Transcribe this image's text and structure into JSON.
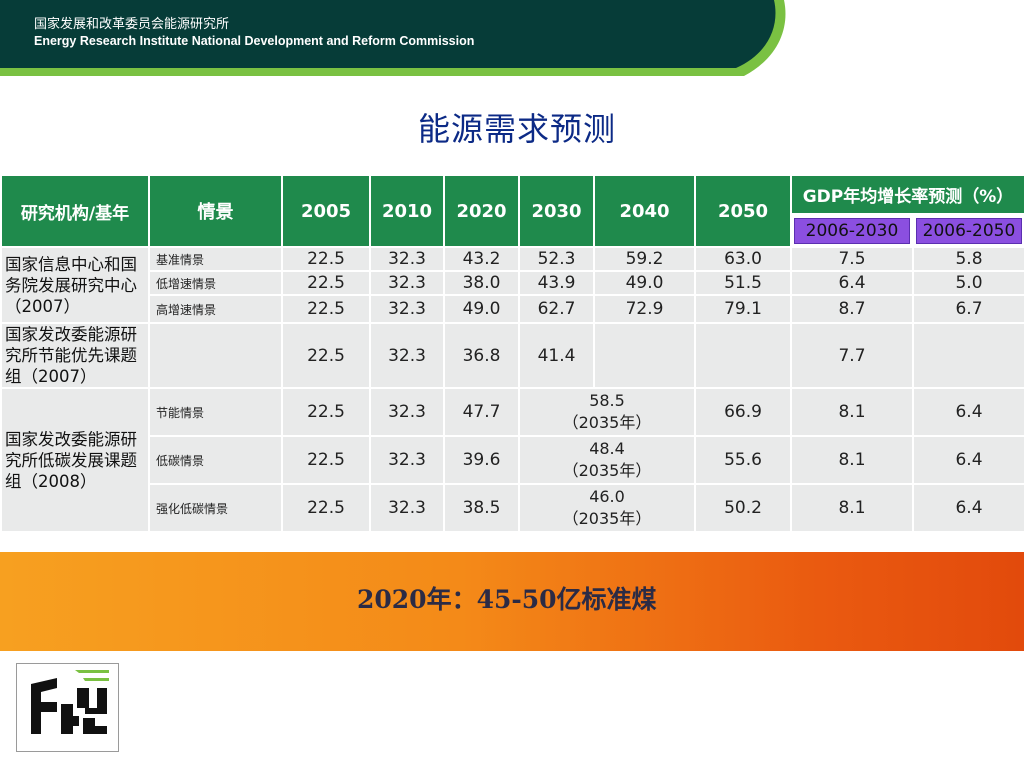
{
  "header": {
    "org_cn": "国家发展和改革委员会能源研究所",
    "org_en": "Energy Research Institute National Development and Reform Commission"
  },
  "title": "能源需求预测",
  "table": {
    "col_org": "研究机构/基年",
    "col_scenario": "情景",
    "years": [
      "2005",
      "2010",
      "2020",
      "2030",
      "2040",
      "2050"
    ],
    "gdp_header": "GDP年均增长率预测（%）",
    "gdp_periods": [
      "2006-2030",
      "2006-2050"
    ],
    "groups": [
      {
        "org": "国家信息中心和国务院发展研究中心（2007）",
        "rows": [
          {
            "scenario": "基准情景",
            "v2005": "22.5",
            "v2010": "32.3",
            "v2020": "43.2",
            "v2030": "52.3",
            "v2040": "59.2",
            "v2050": "63.0",
            "g1": "7.5",
            "g2": "5.8"
          },
          {
            "scenario": "低增速情景",
            "v2005": "22.5",
            "v2010": "32.3",
            "v2020": "38.0",
            "v2030": "43.9",
            "v2040": "49.0",
            "v2050": "51.5",
            "g1": "6.4",
            "g2": "5.0"
          },
          {
            "scenario": "高增速情景",
            "v2005": "22.5",
            "v2010": "32.3",
            "v2020": "49.0",
            "v2030": "62.7",
            "v2040": "72.9",
            "v2050": "79.1",
            "g1": "8.7",
            "g2": "6.7"
          }
        ]
      },
      {
        "org": "国家发改委能源研究所节能优先课题组（2007）",
        "rows": [
          {
            "scenario": "",
            "v2005": "22.5",
            "v2010": "32.3",
            "v2020": "36.8",
            "v2030": "41.4",
            "v2040": "",
            "v2050": "",
            "g1": "7.7",
            "g2": ""
          }
        ]
      },
      {
        "org": "国家发改委能源研究所低碳发展课题组（2008）",
        "rows": [
          {
            "scenario": "节能情景",
            "v2005": "22.5",
            "v2010": "32.3",
            "v2020": "47.7",
            "v2035": "58.5",
            "note": "（2035年）",
            "v2050": "66.9",
            "g1": "8.1",
            "g2": "6.4"
          },
          {
            "scenario": "低碳情景",
            "v2005": "22.5",
            "v2010": "32.3",
            "v2020": "39.6",
            "v2035": "48.4",
            "note": "（2035年）",
            "v2050": "55.6",
            "g1": "8.1",
            "g2": "6.4"
          },
          {
            "scenario": "强化低碳情景",
            "v2005": "22.5",
            "v2010": "32.3",
            "v2020": "38.5",
            "v2035": "46.0",
            "note": "（2035年）",
            "v2050": "50.2",
            "g1": "8.1",
            "g2": "6.4"
          }
        ]
      }
    ]
  },
  "banner": "2020年：45-50亿标准煤",
  "colors": {
    "header_bg": "#063c38",
    "header_accent": "#7ac142",
    "table_header": "#1f8a4c",
    "subheader": "#8b4fe0",
    "title": "#0c2a86"
  }
}
